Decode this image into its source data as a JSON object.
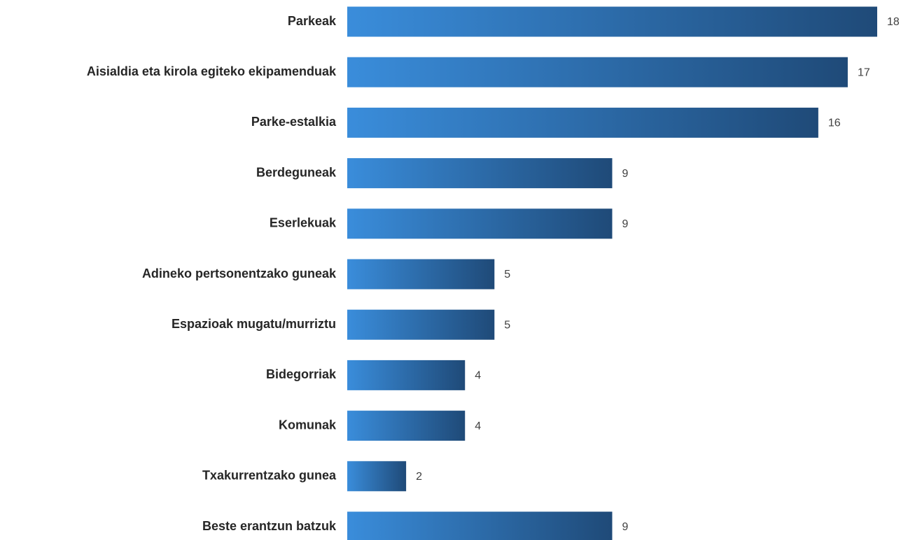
{
  "chart_data": {
    "type": "bar",
    "orientation": "horizontal",
    "categories": [
      "Parkeak",
      "Aisialdia eta kirola egiteko ekipamenduak",
      "Parke-estalkia",
      "Berdeguneak",
      "Eserlekuak",
      "Adineko pertsonentzako guneak",
      "Espazioak mugatu/murriztu",
      "Bidegorriak",
      "Komunak",
      "Txakurrentzako gunea",
      "Beste erantzun batzuk"
    ],
    "values": [
      18,
      17,
      16,
      9,
      9,
      5,
      5,
      4,
      4,
      2,
      9
    ],
    "gradient": [
      "#3a8ddb",
      "#1f4a78"
    ]
  }
}
